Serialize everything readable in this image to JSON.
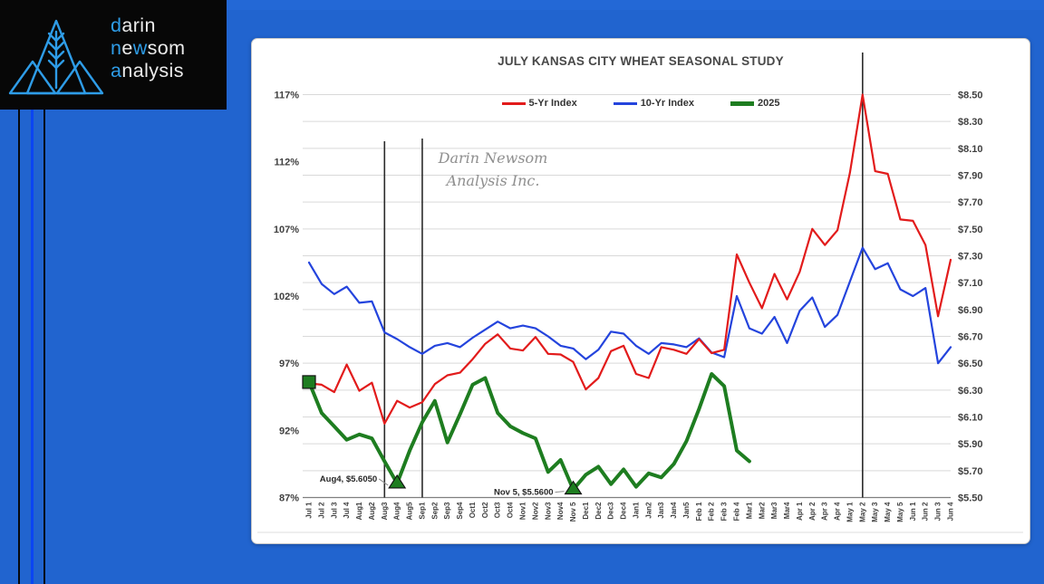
{
  "page": {
    "background_color": "#2164cf",
    "stripe_accent_blue": "#0b45f2",
    "stripe_black": "#06080c"
  },
  "logo": {
    "accent_color": "#2e9ce7",
    "text_color": "#ebebeb",
    "lines": [
      [
        {
          "t": "d",
          "blue": true
        },
        {
          "t": "arin",
          "blue": false
        }
      ],
      [
        {
          "t": "n",
          "blue": true
        },
        {
          "t": "e",
          "blue": false
        },
        {
          "t": "w",
          "blue": true
        },
        {
          "t": "som",
          "blue": false
        }
      ],
      [
        {
          "t": "a",
          "blue": true
        },
        {
          "t": "nalysis",
          "blue": false
        }
      ]
    ]
  },
  "chart_data": {
    "type": "line",
    "title": "JULY KANSAS CITY WHEAT SEASONAL STUDY",
    "watermark": [
      "Darin Newsom",
      "Analysis Inc."
    ],
    "grid": "horizontal",
    "legend_position": "top",
    "x_categories": [
      "Jul 1",
      "Jul 2",
      "Jul 3",
      "Jul 4",
      "Aug1",
      "Aug2",
      "Aug3",
      "Aug4",
      "Aug5",
      "Sep1",
      "Sep2",
      "Sep3",
      "Sep4",
      "Oct1",
      "Oct2",
      "Oct3",
      "Oct4",
      "Nov1",
      "Nov2",
      "Nov3",
      "Nov4",
      "Nov 5",
      "Dec1",
      "Dec2",
      "Dec3",
      "Dec4",
      "Jan1",
      "Jan2",
      "Jan3",
      "Jan4",
      "Jan5",
      "Feb 1",
      "Feb 2",
      "Feb 3",
      "Feb 4",
      "Mar1",
      "Mar2",
      "Mar3",
      "Mar4",
      "Apr 1",
      "Apr 2",
      "Apr 3",
      "Apr 4",
      "May 1",
      "May 2",
      "May 3",
      "May 4",
      "May 5",
      "Jun 1",
      "Jun 2",
      "Jun 3",
      "Jun 4"
    ],
    "left_axis": {
      "labels": [
        "117%",
        "112%",
        "107%",
        "102%",
        "97%",
        "92%",
        "87%"
      ],
      "min": 87,
      "max": 117,
      "grid_step_pct": 2
    },
    "right_axis": {
      "labels": [
        "$8.50",
        "$8.30",
        "$8.10",
        "$7.90",
        "$7.70",
        "$7.50",
        "$7.30",
        "$7.10",
        "$6.90",
        "$6.70",
        "$6.50",
        "$6.30",
        "$6.10",
        "$5.90",
        "$5.70",
        "$5.50"
      ],
      "min": 5.5,
      "max": 8.5,
      "step": 0.2
    },
    "series": [
      {
        "name": "5-Yr Index",
        "color": "#e21b1b",
        "axis": "left",
        "width": 2.2,
        "values": [
          95.5,
          95.4,
          94.85,
          96.9,
          94.95,
          95.55,
          92.5,
          94.2,
          93.7,
          94.1,
          95.45,
          96.1,
          96.3,
          97.3,
          98.45,
          99.15,
          98.1,
          97.95,
          98.95,
          97.7,
          97.65,
          97.1,
          95.05,
          95.9,
          97.9,
          98.3,
          96.2,
          95.9,
          98.2,
          98.0,
          97.7,
          98.8,
          97.75,
          98.0,
          105.1,
          103.0,
          101.1,
          103.65,
          101.75,
          103.8,
          107.0,
          105.8,
          106.9,
          111.2,
          117.0,
          111.3,
          111.1,
          107.7,
          107.6,
          105.8,
          100.5,
          104.7
        ]
      },
      {
        "name": "10-Yr Index",
        "color": "#2444dd",
        "axis": "left",
        "width": 2.2,
        "values": [
          104.5,
          102.9,
          102.15,
          102.7,
          101.5,
          101.6,
          99.3,
          98.8,
          98.2,
          97.7,
          98.3,
          98.5,
          98.2,
          98.9,
          99.5,
          100.1,
          99.6,
          99.8,
          99.6,
          99.0,
          98.3,
          98.1,
          97.3,
          98.0,
          99.35,
          99.2,
          98.3,
          97.7,
          98.5,
          98.4,
          98.2,
          98.85,
          97.8,
          97.45,
          102.0,
          99.6,
          99.2,
          100.45,
          98.5,
          100.9,
          101.9,
          99.7,
          100.6,
          103.1,
          105.6,
          104.0,
          104.45,
          102.5,
          102.0,
          102.6,
          97.0,
          98.2
        ]
      },
      {
        "name": "2025",
        "color": "#1e7d20",
        "axis": "right",
        "width": 4,
        "start_marker": "square",
        "values": [
          6.36,
          6.13,
          6.03,
          5.93,
          5.97,
          5.94,
          5.77,
          5.605,
          5.85,
          6.06,
          6.22,
          5.91,
          6.12,
          6.34,
          6.39,
          6.13,
          6.03,
          5.98,
          5.94,
          5.69,
          5.78,
          5.56,
          5.67,
          5.73,
          5.6,
          5.71,
          5.58,
          5.68,
          5.65,
          5.75,
          5.92,
          6.16,
          6.42,
          6.33,
          5.85,
          5.77,
          null,
          null,
          null,
          null,
          null,
          null,
          null,
          null,
          null,
          null,
          null,
          null,
          null,
          null,
          null,
          null
        ]
      }
    ],
    "event_lines": [
      {
        "x_label": "Aug3",
        "index": 6
      },
      {
        "x_label": "Sep1",
        "index": 9
      },
      {
        "x_label": "May 2",
        "index": 44
      }
    ],
    "annotations": [
      {
        "text": "Aug4, $5.6050",
        "index": 7,
        "value": 5.605,
        "marker": "triangle"
      },
      {
        "text": "Nov 5, $5.5600",
        "index": 21,
        "value": 5.56,
        "marker": "triangle"
      }
    ]
  }
}
